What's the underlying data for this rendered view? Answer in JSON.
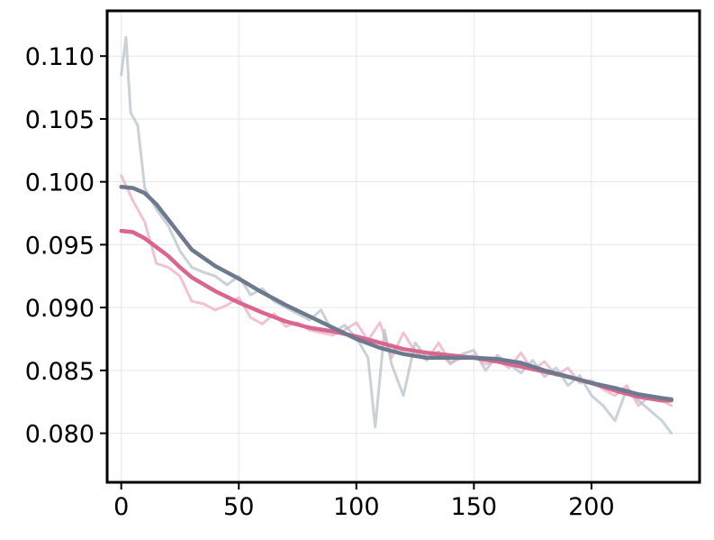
{
  "chart_data": {
    "type": "line",
    "title": "",
    "xlabel": "",
    "ylabel": "",
    "xlim": [
      -6,
      246
    ],
    "ylim": [
      0.0761,
      0.1136
    ],
    "x_ticks": [
      0,
      50,
      100,
      150,
      200
    ],
    "x_tick_labels": [
      "0",
      "50",
      "100",
      "150",
      "200"
    ],
    "y_ticks": [
      0.08,
      0.085,
      0.09,
      0.095,
      0.1,
      0.105,
      0.11
    ],
    "y_tick_labels": [
      "0.080",
      "0.085",
      "0.090",
      "0.095",
      "0.100",
      "0.105",
      "0.110"
    ],
    "grid": true,
    "legend": "none",
    "colors": {
      "pink": "#d9668f",
      "pink_raw": "#ecaec4",
      "slate": "#6d7a8d",
      "slate_raw": "#b8c1ca",
      "grid": "#e6e6e6",
      "axes": "#000000"
    },
    "series": [
      {
        "style": "raw",
        "color": "#ecaec4",
        "x": [
          0,
          5,
          10,
          15,
          20,
          25,
          30,
          35,
          40,
          45,
          50,
          55,
          60,
          65,
          70,
          75,
          80,
          85,
          90,
          95,
          100,
          105,
          110,
          115,
          120,
          125,
          130,
          135,
          140,
          145,
          150,
          155,
          160,
          165,
          170,
          175,
          180,
          185,
          190,
          195,
          200,
          205,
          210,
          215,
          220,
          225,
          230,
          234
        ],
        "y": [
          0.1005,
          0.0985,
          0.0968,
          0.0935,
          0.0932,
          0.0925,
          0.0905,
          0.0903,
          0.0898,
          0.0902,
          0.0908,
          0.0892,
          0.0887,
          0.0895,
          0.0885,
          0.0888,
          0.0882,
          0.088,
          0.0878,
          0.0882,
          0.0888,
          0.0874,
          0.0888,
          0.086,
          0.088,
          0.0865,
          0.0858,
          0.0872,
          0.0856,
          0.086,
          0.0862,
          0.0855,
          0.0858,
          0.0852,
          0.0864,
          0.085,
          0.0857,
          0.0846,
          0.0852,
          0.084,
          0.0842,
          0.0835,
          0.083,
          0.0838,
          0.0822,
          0.083,
          0.0826,
          0.0822
        ]
      },
      {
        "style": "raw",
        "color": "#b8c1ca",
        "x": [
          0,
          2,
          4,
          7,
          10,
          15,
          20,
          25,
          30,
          35,
          40,
          45,
          50,
          55,
          60,
          65,
          70,
          75,
          80,
          85,
          90,
          95,
          100,
          105,
          108,
          112,
          115,
          120,
          125,
          130,
          135,
          140,
          145,
          150,
          155,
          160,
          165,
          170,
          175,
          180,
          185,
          190,
          195,
          200,
          205,
          210,
          215,
          220,
          225,
          230,
          234
        ],
        "y": [
          0.1085,
          0.1115,
          0.1055,
          0.1045,
          0.0995,
          0.0978,
          0.0965,
          0.0945,
          0.0932,
          0.0928,
          0.0925,
          0.0918,
          0.0925,
          0.091,
          0.0915,
          0.0905,
          0.09,
          0.0895,
          0.089,
          0.0898,
          0.088,
          0.0886,
          0.0876,
          0.086,
          0.0805,
          0.0882,
          0.0855,
          0.083,
          0.0872,
          0.086,
          0.0865,
          0.0855,
          0.0863,
          0.0866,
          0.085,
          0.0862,
          0.0855,
          0.0848,
          0.0858,
          0.0845,
          0.0852,
          0.0838,
          0.0846,
          0.083,
          0.0822,
          0.081,
          0.0835,
          0.0826,
          0.0818,
          0.081,
          0.08
        ]
      },
      {
        "style": "smooth",
        "color": "#d9668f",
        "x": [
          0,
          5,
          10,
          15,
          20,
          25,
          30,
          40,
          50,
          60,
          70,
          80,
          90,
          100,
          110,
          120,
          130,
          140,
          150,
          160,
          170,
          180,
          190,
          200,
          210,
          220,
          230,
          234
        ],
        "y": [
          0.0961,
          0.096,
          0.0955,
          0.0948,
          0.0941,
          0.0932,
          0.0924,
          0.0913,
          0.0904,
          0.0896,
          0.0889,
          0.0884,
          0.0881,
          0.0877,
          0.0872,
          0.0867,
          0.0864,
          0.0862,
          0.086,
          0.0857,
          0.0853,
          0.0849,
          0.0845,
          0.084,
          0.0834,
          0.0829,
          0.0826,
          0.0826
        ]
      },
      {
        "style": "smooth",
        "color": "#6d7a8d",
        "x": [
          0,
          5,
          10,
          15,
          20,
          25,
          30,
          40,
          50,
          60,
          70,
          80,
          90,
          100,
          110,
          120,
          130,
          140,
          150,
          160,
          170,
          180,
          190,
          200,
          210,
          220,
          230,
          234
        ],
        "y": [
          0.0996,
          0.0995,
          0.0991,
          0.0982,
          0.097,
          0.0958,
          0.0946,
          0.0933,
          0.0923,
          0.0912,
          0.0902,
          0.0893,
          0.0884,
          0.0875,
          0.0868,
          0.0863,
          0.086,
          0.086,
          0.086,
          0.0859,
          0.0856,
          0.085,
          0.0845,
          0.084,
          0.0836,
          0.0831,
          0.0828,
          0.0827
        ]
      }
    ]
  }
}
